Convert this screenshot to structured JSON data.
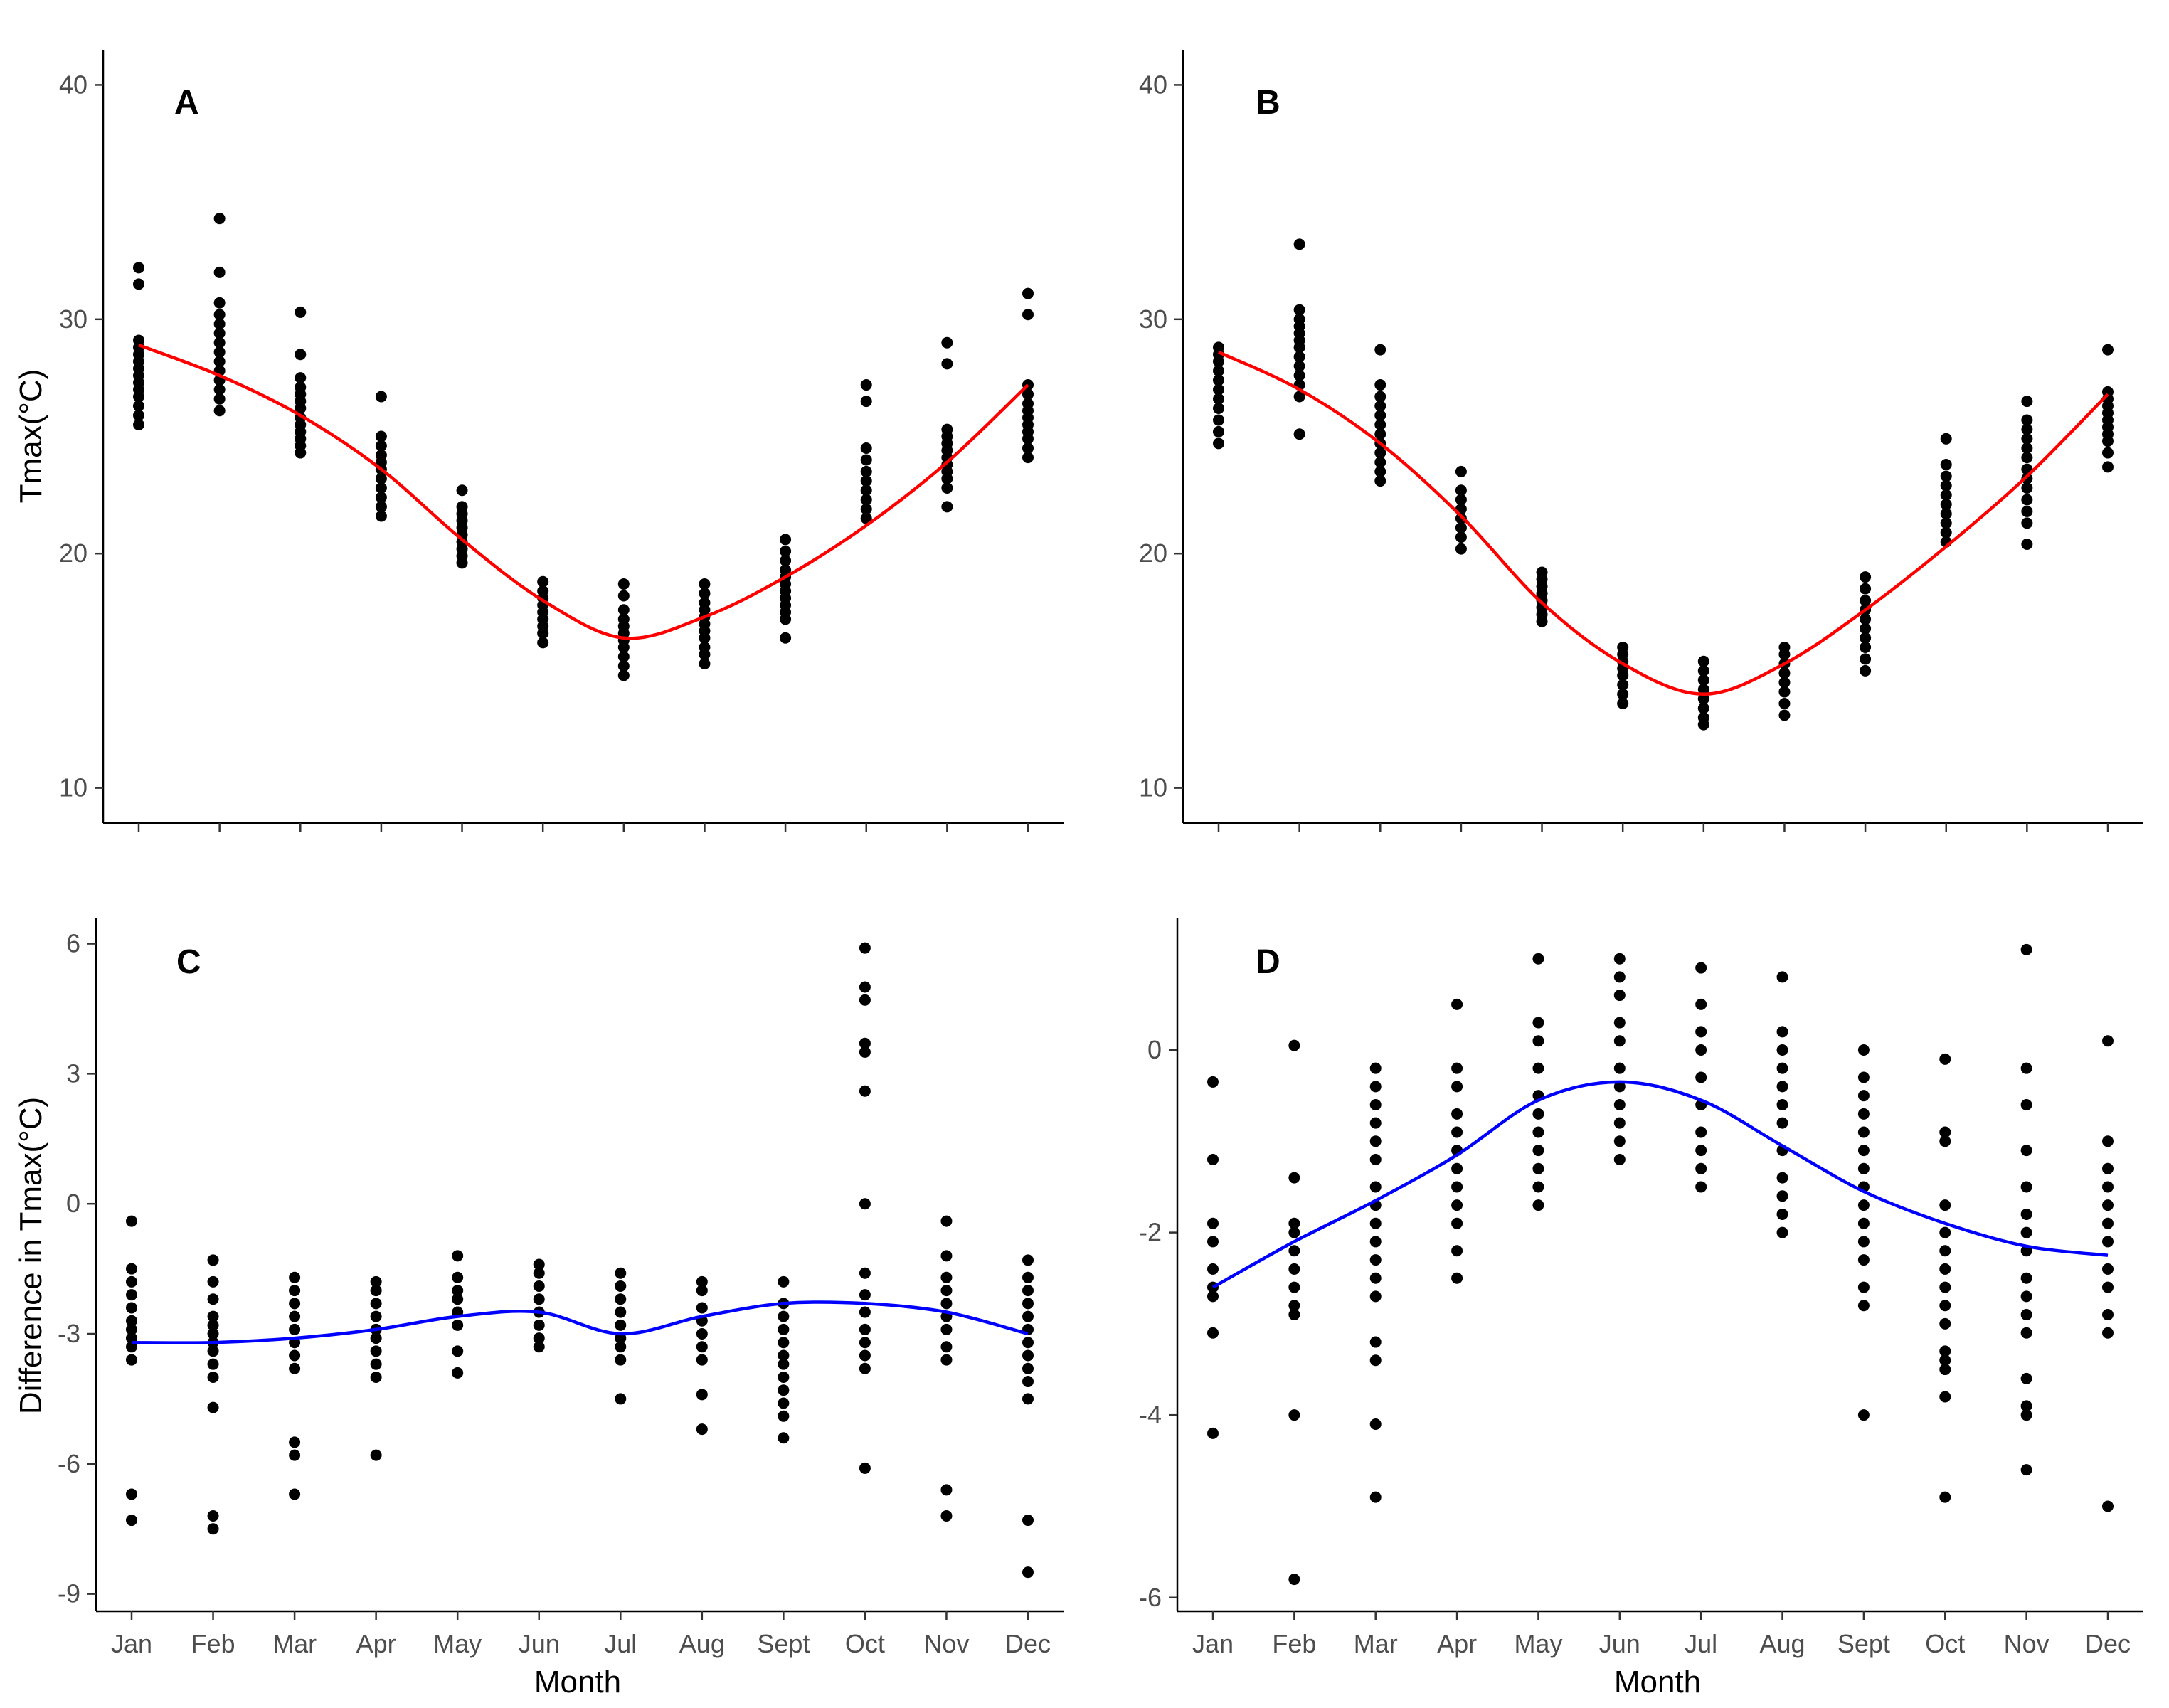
{
  "chart_data": [
    {
      "panel": "A",
      "type": "scatter",
      "ylabel": "Tmax(°C)",
      "xlabel": "",
      "categories": [
        "Jan",
        "Feb",
        "Mar",
        "Apr",
        "May",
        "Jun",
        "Jul",
        "Aug",
        "Sept",
        "Oct",
        "Nov",
        "Dec"
      ],
      "show_x_tick_labels": false,
      "ylim": [
        8.5,
        41.5
      ],
      "yticks": [
        10,
        20,
        30,
        40
      ],
      "grid": false,
      "points": [
        [
          28.8,
          28.5,
          28.2,
          27.9,
          27.6,
          27.3,
          27.0,
          26.7,
          26.3,
          25.9,
          25.5,
          29.1,
          31.5,
          32.2
        ],
        [
          34.3,
          32.0,
          30.7,
          30.2,
          29.8,
          29.4,
          29.0,
          28.6,
          28.2,
          27.8,
          27.4,
          27.0,
          26.6,
          26.1
        ],
        [
          30.3,
          28.5,
          27.5,
          27.1,
          26.8,
          26.5,
          26.2,
          25.8,
          25.5,
          25.2,
          24.9,
          24.6,
          24.3
        ],
        [
          26.7,
          25.0,
          24.6,
          24.2,
          23.9,
          23.6,
          23.2,
          22.8,
          22.4,
          22.0,
          21.6
        ],
        [
          22.7,
          22.0,
          21.7,
          21.4,
          21.1,
          20.8,
          20.5,
          20.2,
          19.9,
          19.6
        ],
        [
          18.8,
          18.4,
          18.1,
          17.8,
          17.5,
          17.2,
          16.9,
          16.6,
          16.2
        ],
        [
          18.7,
          18.2,
          17.6,
          17.2,
          16.9,
          16.6,
          16.3,
          16.0,
          15.6,
          15.2,
          14.8
        ],
        [
          18.7,
          18.3,
          17.9,
          17.6,
          17.3,
          17.0,
          16.7,
          16.4,
          16.0,
          15.7,
          15.3
        ],
        [
          20.6,
          20.1,
          19.7,
          19.3,
          19.0,
          18.7,
          18.4,
          18.1,
          17.8,
          17.5,
          17.2,
          16.4
        ],
        [
          27.2,
          26.5,
          24.5,
          24.0,
          23.5,
          23.1,
          22.7,
          22.3,
          21.9,
          21.5
        ],
        [
          29.0,
          28.1,
          25.3,
          25.0,
          24.7,
          24.4,
          24.1,
          23.8,
          23.5,
          23.2,
          22.8,
          22.0
        ],
        [
          31.1,
          30.2,
          27.2,
          26.8,
          26.4,
          26.1,
          25.8,
          25.5,
          25.2,
          24.9,
          24.5,
          24.1
        ]
      ],
      "trend": [
        28.9,
        27.6,
        25.9,
        23.6,
        20.6,
        18.0,
        16.4,
        17.3,
        19.0,
        21.2,
        23.9,
        27.2
      ],
      "trend_color": "#ff0000"
    },
    {
      "panel": "B",
      "type": "scatter",
      "ylabel": "",
      "xlabel": "",
      "categories": [
        "Jan",
        "Feb",
        "Mar",
        "Apr",
        "May",
        "Jun",
        "Jul",
        "Aug",
        "Sept",
        "Oct",
        "Nov",
        "Dec"
      ],
      "show_x_tick_labels": false,
      "ylim": [
        8.5,
        41.5
      ],
      "yticks": [
        10,
        20,
        30,
        40
      ],
      "grid": false,
      "points": [
        [
          28.8,
          28.5,
          28.2,
          27.8,
          27.4,
          27.0,
          26.6,
          26.2,
          25.7,
          25.2,
          24.7
        ],
        [
          33.2,
          30.4,
          30.0,
          29.7,
          29.4,
          29.1,
          28.8,
          28.4,
          28.0,
          27.6,
          27.2,
          26.7,
          25.1
        ],
        [
          28.7,
          27.2,
          26.7,
          26.3,
          25.9,
          25.5,
          25.1,
          24.7,
          24.3,
          23.9,
          23.5,
          23.1
        ],
        [
          23.5,
          22.7,
          22.3,
          21.9,
          21.5,
          21.1,
          20.7,
          20.2
        ],
        [
          19.2,
          18.9,
          18.6,
          18.3,
          18.0,
          17.7,
          17.4,
          17.1
        ],
        [
          16.0,
          15.7,
          15.4,
          15.1,
          14.8,
          14.4,
          14.0,
          13.6
        ],
        [
          15.4,
          15.0,
          14.6,
          14.2,
          13.8,
          13.4,
          13.0,
          12.7
        ],
        [
          16.0,
          15.7,
          15.3,
          14.9,
          14.5,
          14.1,
          13.6,
          13.1
        ],
        [
          19.0,
          18.5,
          18.0,
          17.6,
          17.2,
          16.8,
          16.4,
          16.0,
          15.5,
          15.0
        ],
        [
          24.9,
          23.8,
          23.3,
          22.9,
          22.5,
          22.1,
          21.7,
          21.3,
          20.9,
          20.5
        ],
        [
          26.5,
          25.7,
          25.3,
          24.9,
          24.5,
          24.1,
          23.6,
          23.2,
          22.8,
          22.3,
          21.8,
          21.3,
          20.4
        ],
        [
          28.7,
          26.9,
          26.6,
          26.3,
          26.0,
          25.7,
          25.4,
          25.1,
          24.8,
          24.3,
          23.7
        ]
      ],
      "trend": [
        28.6,
        27.0,
        24.7,
        21.6,
        17.9,
        15.3,
        14.0,
        15.3,
        17.6,
        20.3,
        23.3,
        26.8
      ],
      "trend_color": "#ff0000"
    },
    {
      "panel": "C",
      "type": "scatter",
      "ylabel": "Difference in Tmax(°C)",
      "xlabel": "Month",
      "categories": [
        "Jan",
        "Feb",
        "Mar",
        "Apr",
        "May",
        "Jun",
        "Jul",
        "Aug",
        "Sept",
        "Oct",
        "Nov",
        "Dec"
      ],
      "show_x_tick_labels": true,
      "ylim": [
        -9.4,
        6.6
      ],
      "yticks": [
        -9,
        -6,
        -3,
        0,
        3,
        6
      ],
      "grid": false,
      "points": [
        [
          -0.4,
          -1.5,
          -1.8,
          -2.1,
          -2.4,
          -2.7,
          -2.9,
          -3.1,
          -3.3,
          -3.6,
          -6.7,
          -7.3
        ],
        [
          -1.3,
          -1.8,
          -2.2,
          -2.6,
          -2.8,
          -3.0,
          -3.2,
          -3.4,
          -3.7,
          -4.0,
          -4.7,
          -7.2,
          -7.5
        ],
        [
          -1.7,
          -2.0,
          -2.3,
          -2.6,
          -2.9,
          -3.2,
          -3.5,
          -3.8,
          -5.5,
          -5.8,
          -6.7
        ],
        [
          -1.8,
          -2.0,
          -2.3,
          -2.6,
          -2.9,
          -3.1,
          -3.4,
          -3.7,
          -4.0,
          -5.8
        ],
        [
          -1.2,
          -1.7,
          -2.0,
          -2.2,
          -2.5,
          -2.8,
          -3.4,
          -3.9
        ],
        [
          -1.4,
          -1.6,
          -1.9,
          -2.2,
          -2.5,
          -2.8,
          -3.1,
          -3.3
        ],
        [
          -1.6,
          -1.9,
          -2.2,
          -2.5,
          -2.8,
          -3.1,
          -3.3,
          -3.6,
          -4.5
        ],
        [
          -1.8,
          -2.0,
          -2.4,
          -2.7,
          -3.0,
          -3.3,
          -3.6,
          -4.4,
          -5.2
        ],
        [
          -1.8,
          -2.3,
          -2.6,
          -2.9,
          -3.2,
          -3.5,
          -3.7,
          -4.0,
          -4.3,
          -4.6,
          -4.9,
          -5.4
        ],
        [
          5.9,
          5.0,
          4.7,
          3.7,
          3.5,
          2.6,
          0.0,
          -1.6,
          -2.1,
          -2.5,
          -2.9,
          -3.2,
          -3.5,
          -3.8,
          -6.1
        ],
        [
          -0.4,
          -1.2,
          -1.7,
          -2.0,
          -2.3,
          -2.6,
          -2.9,
          -3.3,
          -3.6,
          -6.6,
          -7.2
        ],
        [
          -1.3,
          -1.7,
          -2.0,
          -2.3,
          -2.6,
          -2.9,
          -3.2,
          -3.5,
          -3.8,
          -4.1,
          -4.5,
          -7.3,
          -8.5
        ]
      ],
      "trend": [
        -3.2,
        -3.2,
        -3.1,
        -2.9,
        -2.6,
        -2.5,
        -3.0,
        -2.6,
        -2.3,
        -2.3,
        -2.5,
        -3.0
      ],
      "trend_color": "#0000ff"
    },
    {
      "panel": "D",
      "type": "scatter",
      "ylabel": "",
      "xlabel": "Month",
      "categories": [
        "Jan",
        "Feb",
        "Mar",
        "Apr",
        "May",
        "Jun",
        "Jul",
        "Aug",
        "Sept",
        "Oct",
        "Nov",
        "Dec"
      ],
      "show_x_tick_labels": true,
      "ylim": [
        -6.15,
        1.45
      ],
      "yticks": [
        -6,
        -4,
        -2,
        0
      ],
      "grid": false,
      "points": [
        [
          -0.35,
          -1.2,
          -1.9,
          -2.1,
          -2.4,
          -2.6,
          -2.7,
          -3.1,
          -4.2
        ],
        [
          0.05,
          -1.4,
          -1.9,
          -2.0,
          -2.2,
          -2.4,
          -2.6,
          -2.8,
          -2.9,
          -4.0,
          -5.8
        ],
        [
          -0.2,
          -0.4,
          -0.6,
          -0.8,
          -1.0,
          -1.2,
          -1.5,
          -1.7,
          -1.9,
          -2.1,
          -2.3,
          -2.5,
          -2.7,
          -3.2,
          -3.4,
          -4.1,
          -4.9
        ],
        [
          0.5,
          -0.2,
          -0.4,
          -0.7,
          -0.9,
          -1.1,
          -1.3,
          -1.5,
          -1.7,
          -1.9,
          -2.2,
          -2.5
        ],
        [
          1.0,
          0.3,
          0.1,
          -0.2,
          -0.5,
          -0.7,
          -0.9,
          -1.1,
          -1.3,
          -1.5,
          -1.7
        ],
        [
          1.0,
          0.8,
          0.6,
          0.3,
          0.1,
          -0.2,
          -0.4,
          -0.6,
          -0.8,
          -1.0,
          -1.2
        ],
        [
          0.9,
          0.5,
          0.2,
          0.0,
          -0.3,
          -0.6,
          -0.9,
          -1.1,
          -1.3,
          -1.5
        ],
        [
          0.8,
          0.2,
          0.0,
          -0.2,
          -0.4,
          -0.6,
          -0.8,
          -1.1,
          -1.4,
          -1.6,
          -1.8,
          -2.0
        ],
        [
          0.0,
          -0.3,
          -0.5,
          -0.7,
          -0.9,
          -1.1,
          -1.3,
          -1.5,
          -1.7,
          -1.9,
          -2.1,
          -2.3,
          -2.6,
          -2.8,
          -4.0
        ],
        [
          -0.1,
          -0.9,
          -1.0,
          -1.7,
          -2.0,
          -2.2,
          -2.4,
          -2.6,
          -2.8,
          -3.0,
          -3.3,
          -3.4,
          -3.5,
          -3.8,
          -4.9
        ],
        [
          1.1,
          -0.2,
          -0.6,
          -1.1,
          -1.5,
          -1.8,
          -2.0,
          -2.2,
          -2.5,
          -2.7,
          -2.9,
          -3.1,
          -3.6,
          -3.9,
          -4.0,
          -4.6
        ],
        [
          0.1,
          -1.0,
          -1.3,
          -1.5,
          -1.7,
          -1.9,
          -2.1,
          -2.4,
          -2.6,
          -2.9,
          -3.1,
          -5.0
        ]
      ],
      "trend": [
        -2.6,
        -2.1,
        -1.65,
        -1.15,
        -0.55,
        -0.35,
        -0.55,
        -1.05,
        -1.55,
        -1.9,
        -2.15,
        -2.25
      ],
      "trend_color": "#0000ff"
    }
  ]
}
